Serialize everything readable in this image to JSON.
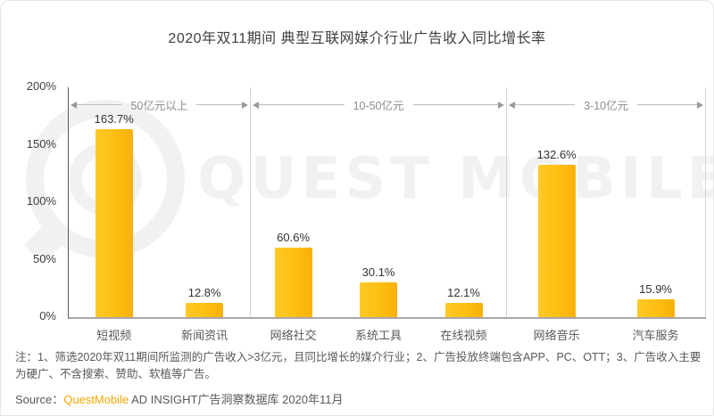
{
  "title": "2020年双11期间 典型互联网媒介行业广告收入同比增长率",
  "watermark": {
    "text": "QUEST MOBILE",
    "logo": "questmobile-logo"
  },
  "chart_data": {
    "type": "bar",
    "title": "2020年双11期间 典型互联网媒介行业广告收入同比增长率",
    "xlabel": "",
    "ylabel": "",
    "ylim": [
      0,
      200
    ],
    "y_ticks": [
      "200%",
      "150%",
      "100%",
      "50%",
      "0%"
    ],
    "grid": false,
    "value_suffix": "%",
    "bar_color": "#FDBE10",
    "categories": [
      "短视频",
      "新闻资讯",
      "网络社交",
      "系统工具",
      "在线视频",
      "网络音乐",
      "汽车服务"
    ],
    "values": [
      163.7,
      12.8,
      60.6,
      30.1,
      12.1,
      132.6,
      15.9
    ],
    "groups": [
      {
        "label": "50亿元以上",
        "categories": [
          "短视频",
          "新闻资讯"
        ],
        "values": [
          163.7,
          12.8
        ]
      },
      {
        "label": "10-50亿元",
        "categories": [
          "网络社交",
          "系统工具",
          "在线视频"
        ],
        "values": [
          60.6,
          30.1,
          12.1
        ]
      },
      {
        "label": "3-10亿元",
        "categories": [
          "网络音乐",
          "汽车服务"
        ],
        "values": [
          132.6,
          15.9
        ]
      }
    ]
  },
  "notes": "注：1、筛选2020年双11期间所监测的广告收入>3亿元，且同比增长的媒介行业；2、广告投放终端包含APP、PC、OTT；3、广告收入主要为硬广、不含搜索、赞助、软植等广告。",
  "source": {
    "prefix": "Source：",
    "brand": "QuestMobile",
    "suffix": " AD INSIGHT广告洞察数据库 2020年11月",
    "brand_color": "#F7A600"
  }
}
